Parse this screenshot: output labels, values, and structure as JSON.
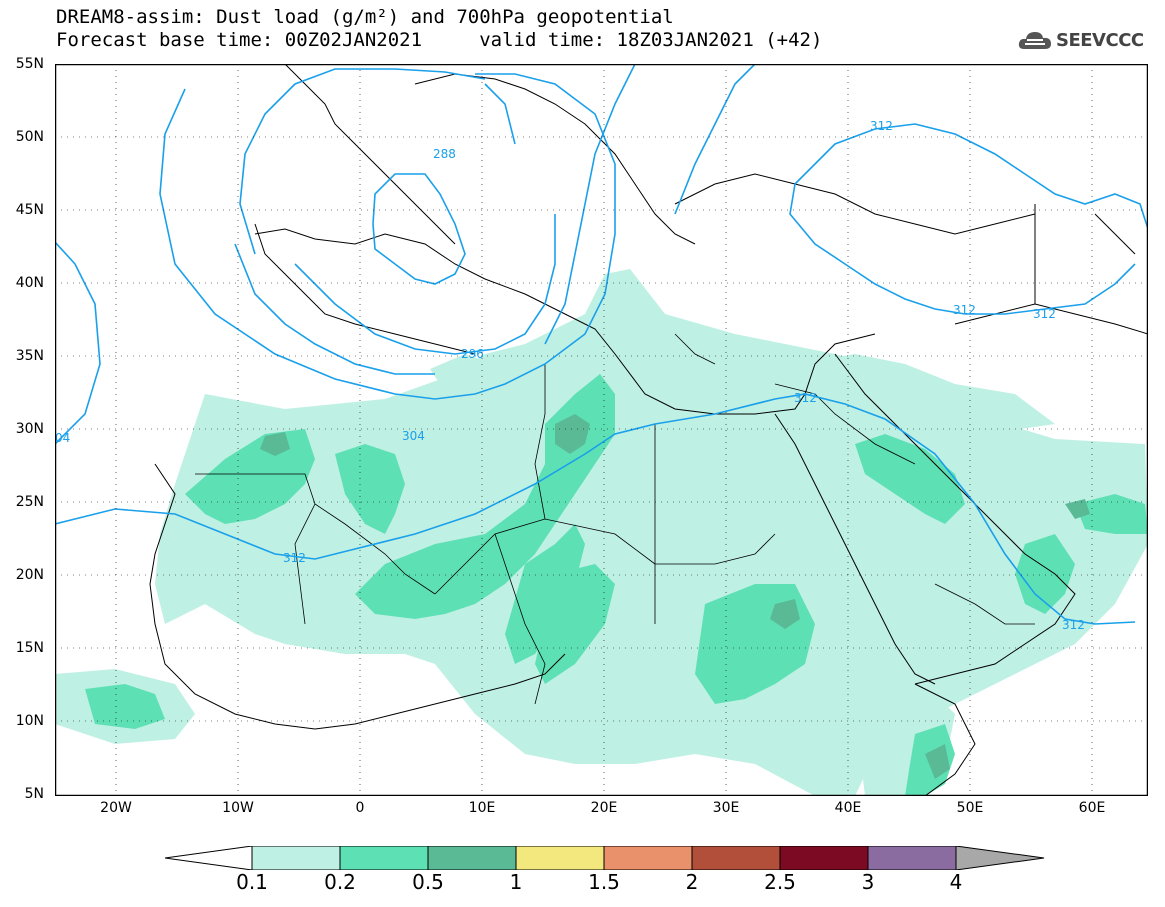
{
  "header": {
    "title_line1": "DREAM8-assim: Dust load (g/m²) and 700hPa geopotential",
    "title_line2": "Forecast base time: 00Z02JAN2021     valid time: 18Z03JAN2021 (+42)",
    "brand": "SEEVCCC"
  },
  "map": {
    "lat_labels": [
      "55N",
      "50N",
      "45N",
      "40N",
      "35N",
      "30N",
      "25N",
      "20N",
      "15N",
      "10N",
      "5N"
    ],
    "lon_labels": [
      "20W",
      "10W",
      "0",
      "10E",
      "20E",
      "30E",
      "40E",
      "50E",
      "60E"
    ],
    "contour_labels": [
      "288",
      "296",
      "304",
      "312",
      "312",
      "312",
      "312",
      "312",
      "312",
      "04",
      "304"
    ]
  },
  "colorbar": {
    "labels": [
      "0.1",
      "0.2",
      "0.5",
      "1",
      "1.5",
      "2",
      "2.5",
      "3",
      "4"
    ],
    "colors": [
      "#bff0e4",
      "#5ee0b5",
      "#5aba96",
      "#f2e87e",
      "#e8916a",
      "#b24f3a",
      "#7b0a22",
      "#8a6ca0",
      "#a8a8a8"
    ]
  },
  "colors": {
    "dust_light": "#bff0e4",
    "dust_medium": "#5ee0b5",
    "dust_dark": "#5aba96",
    "contour": "#1aa0ea",
    "border": "#000000"
  }
}
